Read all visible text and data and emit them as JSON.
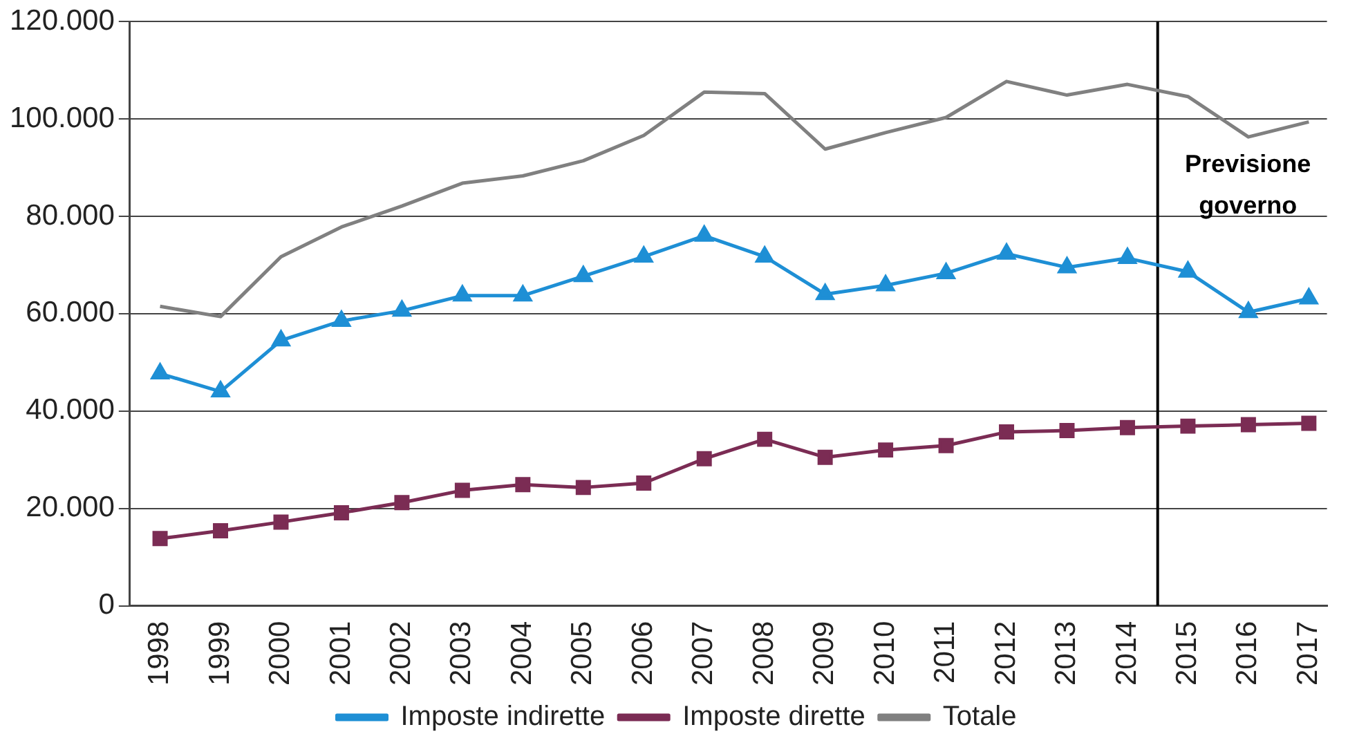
{
  "chart_data": {
    "type": "line",
    "x": [
      1998,
      1999,
      2000,
      2001,
      2002,
      2003,
      2004,
      2005,
      2006,
      2007,
      2008,
      2009,
      2010,
      2011,
      2012,
      2013,
      2014,
      2015,
      2016,
      2017
    ],
    "series": [
      {
        "name": "Imposte indirette",
        "color": "#1e8fd5",
        "marker": "triangle",
        "values": [
          47700,
          44000,
          54500,
          58500,
          60600,
          63700,
          63700,
          67700,
          71700,
          76000,
          71700,
          64000,
          65800,
          68300,
          72300,
          69500,
          71400,
          68600,
          60300,
          63100
        ]
      },
      {
        "name": "Imposte dirette",
        "color": "#7b2c54",
        "marker": "square",
        "values": [
          13800,
          15400,
          17200,
          19100,
          21200,
          23700,
          24900,
          24300,
          25200,
          30200,
          34200,
          30500,
          32000,
          32900,
          35700,
          36000,
          36600,
          36900,
          37200,
          37500
        ]
      },
      {
        "name": "Totale",
        "color": "#808080",
        "marker": "none",
        "values": [
          61500,
          59400,
          71700,
          77800,
          82100,
          86800,
          88300,
          91400,
          96600,
          105500,
          105200,
          93800,
          97200,
          100300,
          107700,
          104900,
          107100,
          104600,
          96300,
          99400
        ]
      }
    ],
    "xlim": [
      1997.5,
      2017.3
    ],
    "xticks": [
      1998,
      1999,
      2000,
      2001,
      2002,
      2003,
      2004,
      2005,
      2006,
      2007,
      2008,
      2009,
      2010,
      2011,
      2012,
      2013,
      2014,
      2015,
      2016,
      2017
    ],
    "ylim": [
      0,
      120000
    ],
    "yticks": [
      0,
      {
        "value": 20000,
        "label": "20.000"
      },
      {
        "value": 40000,
        "label": "40.000"
      },
      {
        "value": 60000,
        "label": "60.000"
      },
      {
        "value": 80000,
        "label": "80.000"
      },
      {
        "value": 100000,
        "label": "100.000"
      },
      {
        "value": 120000,
        "label": "120.000"
      }
    ],
    "ref_lines": [
      {
        "axis": "x",
        "value": 2014.5,
        "label": "Previsione governo",
        "color": "#000000"
      }
    ],
    "grid": "y",
    "legend": "bottom"
  }
}
